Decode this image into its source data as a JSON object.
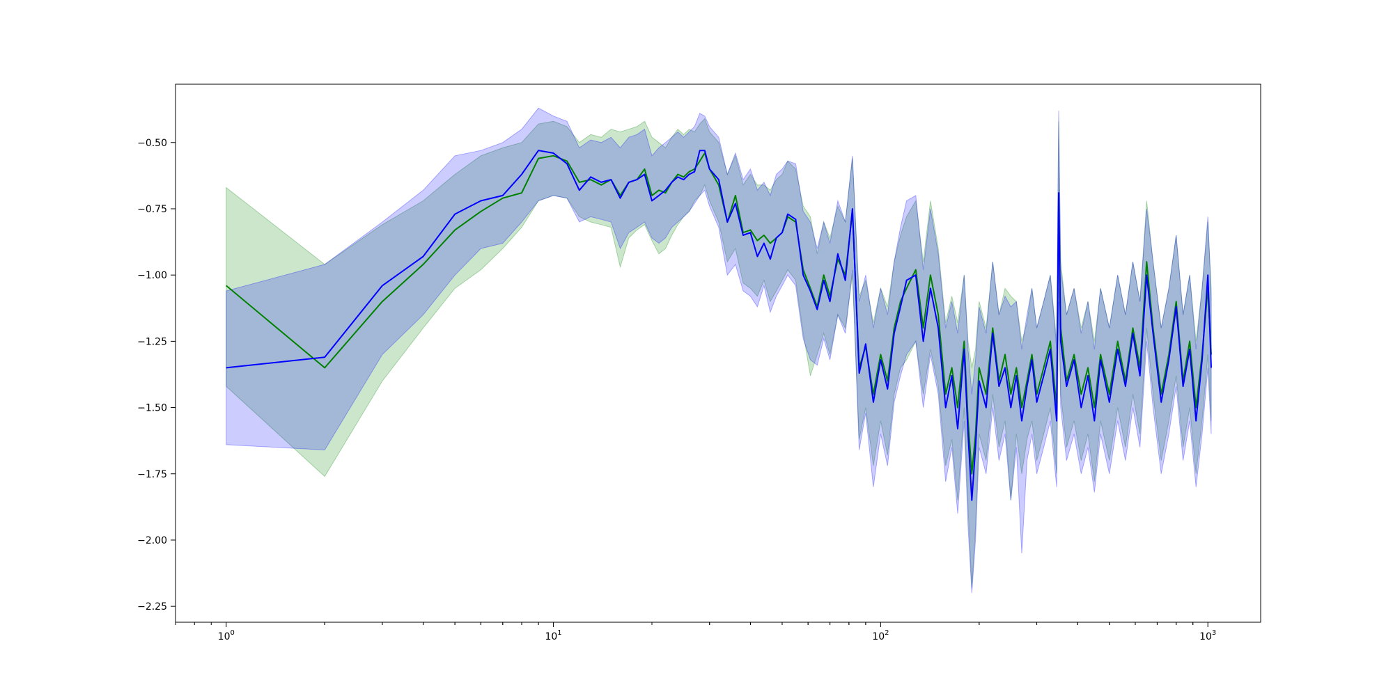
{
  "chart_data": {
    "type": "line",
    "title": "",
    "xlabel": "",
    "ylabel": "",
    "x_scale": "log",
    "xlim": [
      0.7,
      1450
    ],
    "ylim": [
      -2.31,
      -0.28
    ],
    "grid": false,
    "legend": "none",
    "x_ticks": [
      {
        "value": 1,
        "base": "10",
        "exp": "0"
      },
      {
        "value": 10,
        "base": "10",
        "exp": "1"
      },
      {
        "value": 100,
        "base": "10",
        "exp": "2"
      },
      {
        "value": 1000,
        "base": "10",
        "exp": "3"
      }
    ],
    "y_ticks": [
      {
        "value": -0.5,
        "label": "−0.50"
      },
      {
        "value": -0.75,
        "label": "−0.75"
      },
      {
        "value": -1.0,
        "label": "−1.00"
      },
      {
        "value": -1.25,
        "label": "−1.25"
      },
      {
        "value": -1.5,
        "label": "−1.50"
      },
      {
        "value": -1.75,
        "label": "−1.75"
      },
      {
        "value": -2.0,
        "label": "−2.00"
      },
      {
        "value": -2.25,
        "label": "−2.25"
      }
    ],
    "series": [
      {
        "color": "#008000",
        "band_color": "#008000",
        "band_opacity": 0.2,
        "x": [
          1,
          2,
          3,
          4,
          5,
          6,
          7,
          8,
          9,
          10,
          11,
          12,
          13,
          14,
          15,
          16,
          17,
          18,
          19,
          20,
          21,
          22,
          23,
          24,
          25,
          26,
          27,
          28,
          29,
          30,
          32,
          34,
          36,
          38,
          40,
          42,
          44,
          46,
          48,
          50,
          52,
          55,
          58,
          61,
          64,
          67,
          70,
          74,
          78,
          82,
          86,
          90,
          95,
          100,
          105,
          110,
          115,
          120,
          128,
          135,
          142,
          150,
          158,
          165,
          172,
          180,
          185,
          190,
          195,
          200,
          210,
          220,
          230,
          240,
          250,
          260,
          270,
          280,
          290,
          300,
          315,
          330,
          345,
          350,
          355,
          370,
          390,
          410,
          430,
          450,
          470,
          500,
          530,
          560,
          590,
          620,
          650,
          680,
          720,
          760,
          800,
          840,
          880,
          920,
          960,
          1000,
          1024
        ],
        "y": [
          -1.04,
          -1.35,
          -1.1,
          -0.96,
          -0.83,
          -0.76,
          -0.71,
          -0.69,
          -0.56,
          -0.55,
          -0.57,
          -0.65,
          -0.64,
          -0.66,
          -0.64,
          -0.7,
          -0.65,
          -0.64,
          -0.6,
          -0.7,
          -0.68,
          -0.69,
          -0.65,
          -0.62,
          -0.63,
          -0.61,
          -0.6,
          -0.57,
          -0.54,
          -0.6,
          -0.66,
          -0.8,
          -0.7,
          -0.84,
          -0.83,
          -0.87,
          -0.85,
          -0.88,
          -0.86,
          -0.84,
          -0.78,
          -0.8,
          -0.98,
          -1.05,
          -1.12,
          -1.0,
          -1.08,
          -0.94,
          -1.0,
          -0.76,
          -1.35,
          -1.27,
          -1.45,
          -1.3,
          -1.4,
          -1.2,
          -1.1,
          -1.05,
          -0.98,
          -1.2,
          -1.0,
          -1.15,
          -1.45,
          -1.35,
          -1.5,
          -1.25,
          -1.55,
          -1.75,
          -1.6,
          -1.35,
          -1.45,
          -1.2,
          -1.4,
          -1.3,
          -1.45,
          -1.35,
          -1.5,
          -1.4,
          -1.3,
          -1.45,
          -1.35,
          -1.25,
          -1.5,
          -0.7,
          -1.2,
          -1.4,
          -1.3,
          -1.45,
          -1.35,
          -1.5,
          -1.3,
          -1.45,
          -1.25,
          -1.4,
          -1.2,
          -1.35,
          -0.95,
          -1.2,
          -1.45,
          -1.3,
          -1.1,
          -1.4,
          -1.25,
          -1.5,
          -1.3,
          -1.05,
          -1.3
        ],
        "y_lower": [
          -1.42,
          -1.76,
          -1.4,
          -1.2,
          -1.05,
          -0.98,
          -0.9,
          -0.82,
          -0.72,
          -0.7,
          -0.71,
          -0.78,
          -0.8,
          -0.81,
          -0.82,
          -0.97,
          -0.86,
          -0.83,
          -0.81,
          -0.87,
          -0.92,
          -0.9,
          -0.85,
          -0.81,
          -0.78,
          -0.76,
          -0.72,
          -0.7,
          -0.66,
          -0.72,
          -0.8,
          -0.95,
          -0.9,
          -1.03,
          -1.05,
          -1.08,
          -1.02,
          -1.1,
          -1.06,
          -1.02,
          -0.98,
          -1.02,
          -1.22,
          -1.38,
          -1.3,
          -1.22,
          -1.3,
          -1.15,
          -1.2,
          -1.0,
          -1.62,
          -1.5,
          -1.72,
          -1.55,
          -1.68,
          -1.45,
          -1.35,
          -1.32,
          -1.25,
          -1.45,
          -1.28,
          -1.42,
          -1.72,
          -1.62,
          -1.85,
          -1.5,
          -1.88,
          -2.18,
          -1.95,
          -1.6,
          -1.7,
          -1.45,
          -1.65,
          -1.55,
          -1.85,
          -1.6,
          -1.75,
          -1.62,
          -1.55,
          -1.7,
          -1.6,
          -1.5,
          -1.75,
          -1.05,
          -1.45,
          -1.65,
          -1.55,
          -1.7,
          -1.6,
          -1.78,
          -1.55,
          -1.7,
          -1.5,
          -1.65,
          -1.45,
          -1.6,
          -1.2,
          -1.45,
          -1.7,
          -1.55,
          -1.38,
          -1.65,
          -1.5,
          -1.75,
          -1.55,
          -1.3,
          -1.55
        ],
        "y_upper": [
          -0.67,
          -0.96,
          -0.81,
          -0.72,
          -0.62,
          -0.55,
          -0.52,
          -0.5,
          -0.43,
          -0.42,
          -0.44,
          -0.5,
          -0.47,
          -0.48,
          -0.45,
          -0.46,
          -0.45,
          -0.44,
          -0.42,
          -0.48,
          -0.5,
          -0.52,
          -0.48,
          -0.45,
          -0.47,
          -0.45,
          -0.46,
          -0.43,
          -0.41,
          -0.46,
          -0.5,
          -0.62,
          -0.55,
          -0.66,
          -0.62,
          -0.66,
          -0.66,
          -0.68,
          -0.64,
          -0.62,
          -0.57,
          -0.6,
          -0.74,
          -0.78,
          -0.92,
          -0.8,
          -0.86,
          -0.74,
          -0.8,
          -0.56,
          -1.08,
          -1.02,
          -1.18,
          -1.05,
          -1.12,
          -0.95,
          -0.85,
          -0.78,
          -0.72,
          -0.95,
          -0.72,
          -0.9,
          -1.18,
          -1.08,
          -1.18,
          -1.0,
          -1.25,
          -1.35,
          -1.28,
          -1.1,
          -1.2,
          -0.95,
          -1.15,
          -1.05,
          -1.08,
          -1.1,
          -1.25,
          -1.18,
          -1.05,
          -1.2,
          -1.1,
          -1.0,
          -1.25,
          -0.42,
          -0.95,
          -1.15,
          -1.05,
          -1.2,
          -1.1,
          -1.25,
          -1.05,
          -1.2,
          -1.0,
          -1.15,
          -0.95,
          -1.1,
          -0.72,
          -0.95,
          -1.2,
          -1.05,
          -0.85,
          -1.15,
          -1.0,
          -1.25,
          -1.05,
          -0.8,
          -1.05
        ]
      },
      {
        "color": "#0000ff",
        "band_color": "#0000ff",
        "band_opacity": 0.2,
        "x": [
          1,
          2,
          3,
          4,
          5,
          6,
          7,
          8,
          9,
          10,
          11,
          12,
          13,
          14,
          15,
          16,
          17,
          18,
          19,
          20,
          21,
          22,
          23,
          24,
          25,
          26,
          27,
          28,
          29,
          30,
          32,
          34,
          36,
          38,
          40,
          42,
          44,
          46,
          48,
          50,
          52,
          55,
          58,
          61,
          64,
          67,
          70,
          74,
          78,
          82,
          86,
          90,
          95,
          100,
          105,
          110,
          115,
          120,
          128,
          135,
          142,
          150,
          158,
          165,
          172,
          180,
          185,
          190,
          195,
          200,
          210,
          220,
          230,
          240,
          250,
          260,
          270,
          280,
          290,
          300,
          315,
          330,
          345,
          350,
          355,
          370,
          390,
          410,
          430,
          450,
          470,
          500,
          530,
          560,
          590,
          620,
          650,
          680,
          720,
          760,
          800,
          840,
          880,
          920,
          960,
          1000,
          1024
        ],
        "y": [
          -1.35,
          -1.31,
          -1.04,
          -0.93,
          -0.77,
          -0.72,
          -0.7,
          -0.62,
          -0.53,
          -0.54,
          -0.58,
          -0.68,
          -0.63,
          -0.65,
          -0.64,
          -0.71,
          -0.65,
          -0.64,
          -0.62,
          -0.72,
          -0.7,
          -0.68,
          -0.65,
          -0.63,
          -0.64,
          -0.62,
          -0.61,
          -0.53,
          -0.53,
          -0.6,
          -0.64,
          -0.8,
          -0.73,
          -0.85,
          -0.84,
          -0.93,
          -0.88,
          -0.94,
          -0.86,
          -0.84,
          -0.77,
          -0.79,
          -1.0,
          -1.06,
          -1.13,
          -1.02,
          -1.1,
          -0.92,
          -1.02,
          -0.75,
          -1.37,
          -1.26,
          -1.48,
          -1.32,
          -1.43,
          -1.22,
          -1.12,
          -1.02,
          -1.0,
          -1.25,
          -1.05,
          -1.2,
          -1.5,
          -1.38,
          -1.58,
          -1.28,
          -1.6,
          -1.85,
          -1.65,
          -1.4,
          -1.5,
          -1.22,
          -1.42,
          -1.35,
          -1.5,
          -1.38,
          -1.55,
          -1.42,
          -1.32,
          -1.48,
          -1.38,
          -1.28,
          -1.55,
          -0.69,
          -1.25,
          -1.42,
          -1.32,
          -1.5,
          -1.38,
          -1.55,
          -1.32,
          -1.48,
          -1.28,
          -1.42,
          -1.22,
          -1.38,
          -1.0,
          -1.22,
          -1.48,
          -1.32,
          -1.12,
          -1.42,
          -1.28,
          -1.55,
          -1.32,
          -1.0,
          -1.35
        ],
        "y_lower": [
          -1.64,
          -1.66,
          -1.3,
          -1.15,
          -1.0,
          -0.9,
          -0.88,
          -0.8,
          -0.72,
          -0.7,
          -0.71,
          -0.8,
          -0.78,
          -0.79,
          -0.8,
          -0.9,
          -0.84,
          -0.82,
          -0.8,
          -0.86,
          -0.88,
          -0.86,
          -0.82,
          -0.8,
          -0.78,
          -0.76,
          -0.73,
          -0.7,
          -0.68,
          -0.74,
          -0.82,
          -1.0,
          -0.96,
          -1.06,
          -1.08,
          -1.12,
          -1.04,
          -1.14,
          -1.08,
          -1.04,
          -1.0,
          -1.04,
          -1.24,
          -1.32,
          -1.34,
          -1.24,
          -1.32,
          -1.15,
          -1.22,
          -0.98,
          -1.66,
          -1.52,
          -1.8,
          -1.6,
          -1.72,
          -1.48,
          -1.38,
          -1.3,
          -1.25,
          -1.5,
          -1.3,
          -1.45,
          -1.78,
          -1.65,
          -1.9,
          -1.55,
          -1.95,
          -2.2,
          -2.0,
          -1.65,
          -1.75,
          -1.5,
          -1.7,
          -1.6,
          -1.85,
          -1.65,
          -2.05,
          -1.7,
          -1.6,
          -1.75,
          -1.65,
          -1.55,
          -1.8,
          -1.1,
          -1.5,
          -1.7,
          -1.6,
          -1.75,
          -1.65,
          -1.82,
          -1.6,
          -1.75,
          -1.55,
          -1.7,
          -1.5,
          -1.65,
          -1.25,
          -1.5,
          -1.75,
          -1.6,
          -1.42,
          -1.7,
          -1.55,
          -1.8,
          -1.6,
          -1.35,
          -1.6
        ],
        "y_upper": [
          -1.06,
          -0.96,
          -0.8,
          -0.68,
          -0.55,
          -0.53,
          -0.5,
          -0.45,
          -0.37,
          -0.4,
          -0.42,
          -0.52,
          -0.49,
          -0.5,
          -0.48,
          -0.52,
          -0.48,
          -0.47,
          -0.45,
          -0.55,
          -0.52,
          -0.5,
          -0.48,
          -0.46,
          -0.48,
          -0.46,
          -0.44,
          -0.39,
          -0.4,
          -0.44,
          -0.48,
          -0.62,
          -0.54,
          -0.64,
          -0.6,
          -0.68,
          -0.65,
          -0.7,
          -0.62,
          -0.6,
          -0.57,
          -0.58,
          -0.76,
          -0.8,
          -0.9,
          -0.8,
          -0.88,
          -0.72,
          -0.8,
          -0.55,
          -1.1,
          -1.0,
          -1.2,
          -1.05,
          -1.15,
          -0.95,
          -0.82,
          -0.72,
          -0.7,
          -0.98,
          -0.75,
          -0.92,
          -1.2,
          -1.1,
          -1.22,
          -1.0,
          -1.28,
          -1.45,
          -1.32,
          -1.12,
          -1.22,
          -0.95,
          -1.15,
          -1.08,
          -1.12,
          -1.1,
          -1.28,
          -1.15,
          -1.05,
          -1.2,
          -1.1,
          -1.0,
          -1.28,
          -0.38,
          -0.98,
          -1.15,
          -1.05,
          -1.22,
          -1.1,
          -1.28,
          -1.05,
          -1.2,
          -1.0,
          -1.15,
          -0.95,
          -1.1,
          -0.75,
          -0.95,
          -1.2,
          -1.05,
          -0.85,
          -1.15,
          -1.0,
          -1.28,
          -1.05,
          -0.78,
          -1.08
        ]
      }
    ]
  }
}
